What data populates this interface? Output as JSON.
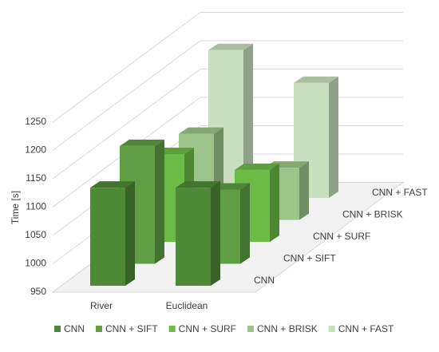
{
  "chart_data": {
    "type": "bar3d",
    "y_label": "Time [s]",
    "categories": [
      "River",
      "Euclidean"
    ],
    "series": [
      {
        "name": "CNN",
        "color": "#4e8a35",
        "values": [
          1123,
          1123
        ]
      },
      {
        "name": "CNN + SIFT",
        "color": "#5f9e44",
        "values": [
          1158,
          1081
        ]
      },
      {
        "name": "CNN + SURF",
        "color": "#6cbb47",
        "values": [
          1105,
          1077
        ]
      },
      {
        "name": "CNN + BRISK",
        "color": "#9dc48a",
        "values": [
          1102,
          1042
        ]
      },
      {
        "name": "CNN + FAST",
        "color": "#c8e0bf",
        "values": [
          1211,
          1153
        ]
      }
    ],
    "ylim": [
      950,
      1250
    ],
    "yticks": [
      950,
      1000,
      1050,
      1100,
      1150,
      1200,
      1250
    ],
    "grid": true
  }
}
